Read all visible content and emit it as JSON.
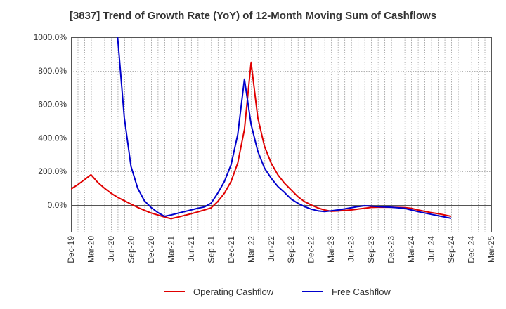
{
  "chart_data": {
    "type": "line",
    "title": "[3837]  Trend of Growth Rate (YoY) of 12-Month Moving Sum of Cashflows",
    "xlabel": "",
    "ylabel": "",
    "ylim": [
      -160,
      1000
    ],
    "y_ticks": [
      0,
      200,
      400,
      600,
      800,
      1000
    ],
    "y_tick_labels": [
      "0.0%",
      "200.0%",
      "400.0%",
      "600.0%",
      "800.0%",
      "1000.0%"
    ],
    "x_ticks": [
      "Dec-19",
      "Mar-20",
      "Jun-20",
      "Sep-20",
      "Dec-20",
      "Mar-21",
      "Jun-21",
      "Sep-21",
      "Dec-21",
      "Mar-22",
      "Jun-22",
      "Sep-22",
      "Dec-22",
      "Mar-23",
      "Jun-23",
      "Sep-23",
      "Dec-23",
      "Mar-24",
      "Jun-24",
      "Sep-24",
      "Dec-24",
      "Mar-25"
    ],
    "grid": true,
    "legend_position": "bottom",
    "series": [
      {
        "name": "Operating Cashflow",
        "color": "#e00000",
        "points": [
          [
            "Dec-19",
            95
          ],
          [
            "Jan-20",
            120
          ],
          [
            "Feb-20",
            150
          ],
          [
            "Mar-20",
            180
          ],
          [
            "Apr-20",
            135
          ],
          [
            "May-20",
            100
          ],
          [
            "Jun-20",
            70
          ],
          [
            "Jul-20",
            45
          ],
          [
            "Aug-20",
            25
          ],
          [
            "Sep-20",
            5
          ],
          [
            "Oct-20",
            -15
          ],
          [
            "Nov-20",
            -32
          ],
          [
            "Dec-20",
            -48
          ],
          [
            "Jan-21",
            -60
          ],
          [
            "Feb-21",
            -72
          ],
          [
            "Mar-21",
            -82
          ],
          [
            "Apr-21",
            -73
          ],
          [
            "May-21",
            -63
          ],
          [
            "Jun-21",
            -53
          ],
          [
            "Jul-21",
            -42
          ],
          [
            "Aug-21",
            -30
          ],
          [
            "Sep-21",
            -18
          ],
          [
            "Oct-21",
            20
          ],
          [
            "Nov-21",
            70
          ],
          [
            "Dec-21",
            140
          ],
          [
            "Jan-22",
            250
          ],
          [
            "Feb-22",
            450
          ],
          [
            "Mar-22",
            850
          ],
          [
            "Apr-22",
            520
          ],
          [
            "May-22",
            350
          ],
          [
            "Jun-22",
            250
          ],
          [
            "Jul-22",
            180
          ],
          [
            "Aug-22",
            130
          ],
          [
            "Sep-22",
            90
          ],
          [
            "Oct-22",
            50
          ],
          [
            "Nov-22",
            20
          ],
          [
            "Dec-22",
            0
          ],
          [
            "Jan-23",
            -18
          ],
          [
            "Feb-23",
            -30
          ],
          [
            "Mar-23",
            -38
          ],
          [
            "Apr-23",
            -36
          ],
          [
            "May-23",
            -33
          ],
          [
            "Jun-23",
            -30
          ],
          [
            "Jul-23",
            -25
          ],
          [
            "Aug-23",
            -20
          ],
          [
            "Sep-23",
            -15
          ],
          [
            "Oct-23",
            -14
          ],
          [
            "Nov-23",
            -14
          ],
          [
            "Dec-23",
            -14
          ],
          [
            "Jan-24",
            -15
          ],
          [
            "Feb-24",
            -16
          ],
          [
            "Mar-24",
            -20
          ],
          [
            "Apr-24",
            -30
          ],
          [
            "May-24",
            -38
          ],
          [
            "Jun-24",
            -46
          ],
          [
            "Jul-24",
            -52
          ],
          [
            "Aug-24",
            -60
          ],
          [
            "Sep-24",
            -68
          ]
        ]
      },
      {
        "name": "Free Cashflow",
        "color": "#0000cc",
        "points": [
          [
            "Jul-20",
            1000
          ],
          [
            "Aug-20",
            520
          ],
          [
            "Sep-20",
            230
          ],
          [
            "Oct-20",
            100
          ],
          [
            "Nov-20",
            25
          ],
          [
            "Dec-20",
            -15
          ],
          [
            "Jan-21",
            -45
          ],
          [
            "Feb-21",
            -68
          ],
          [
            "Mar-21",
            -60
          ],
          [
            "Apr-21",
            -50
          ],
          [
            "May-21",
            -40
          ],
          [
            "Jun-21",
            -30
          ],
          [
            "Jul-21",
            -20
          ],
          [
            "Aug-21",
            -12
          ],
          [
            "Sep-21",
            10
          ],
          [
            "Oct-21",
            70
          ],
          [
            "Nov-21",
            140
          ],
          [
            "Dec-21",
            240
          ],
          [
            "Jan-22",
            420
          ],
          [
            "Feb-22",
            750
          ],
          [
            "Mar-22",
            480
          ],
          [
            "Apr-22",
            320
          ],
          [
            "May-22",
            220
          ],
          [
            "Jun-22",
            160
          ],
          [
            "Jul-22",
            110
          ],
          [
            "Aug-22",
            75
          ],
          [
            "Sep-22",
            35
          ],
          [
            "Oct-22",
            10
          ],
          [
            "Nov-22",
            -10
          ],
          [
            "Dec-22",
            -25
          ],
          [
            "Jan-23",
            -35
          ],
          [
            "Feb-23",
            -40
          ],
          [
            "Mar-23",
            -35
          ],
          [
            "Apr-23",
            -30
          ],
          [
            "May-23",
            -24
          ],
          [
            "Jun-23",
            -17
          ],
          [
            "Jul-23",
            -10
          ],
          [
            "Aug-23",
            -5
          ],
          [
            "Sep-23",
            -7
          ],
          [
            "Oct-23",
            -10
          ],
          [
            "Nov-23",
            -12
          ],
          [
            "Dec-23",
            -14
          ],
          [
            "Jan-24",
            -17
          ],
          [
            "Feb-24",
            -20
          ],
          [
            "Mar-24",
            -30
          ],
          [
            "Apr-24",
            -40
          ],
          [
            "May-24",
            -48
          ],
          [
            "Jun-24",
            -56
          ],
          [
            "Jul-24",
            -64
          ],
          [
            "Aug-24",
            -72
          ],
          [
            "Sep-24",
            -80
          ]
        ]
      }
    ]
  }
}
